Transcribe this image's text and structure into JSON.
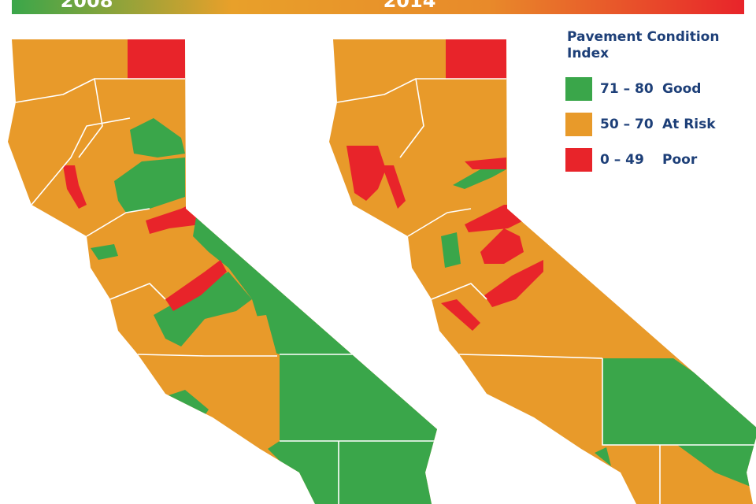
{
  "header": {
    "years": [
      "2008",
      "2014"
    ]
  },
  "legend": {
    "title": "Pavement Condition Index",
    "items": [
      {
        "range": "71 – 80",
        "label": "Good",
        "color": "#3aa64a"
      },
      {
        "range": "50 – 70",
        "label": "At Risk",
        "color": "#e89a2a"
      },
      {
        "range": "0 – 49",
        "label": "Poor",
        "color": "#e8242a"
      }
    ]
  }
}
